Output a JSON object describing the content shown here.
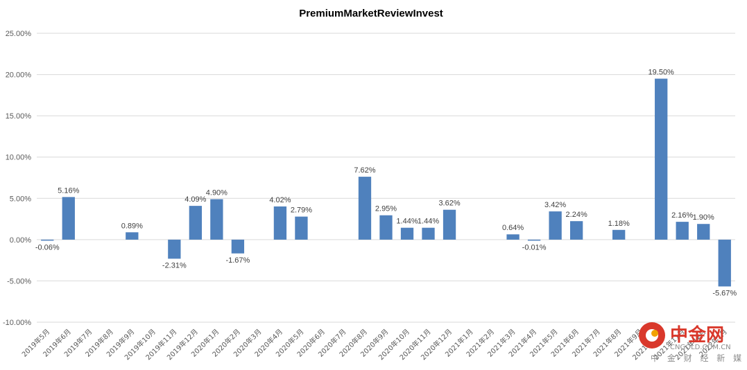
{
  "chart_data": {
    "type": "bar",
    "title": "PremiumMarketReviewInvest",
    "xlabel": "",
    "ylabel": "",
    "ylim": [
      -10,
      25
    ],
    "y_ticks": [
      "25.00%",
      "20.00%",
      "15.00%",
      "10.00%",
      "5.00%",
      "0.00%",
      "-5.00%",
      "-10.00%"
    ],
    "y_tick_values": [
      25,
      20,
      15,
      10,
      5,
      0,
      -5,
      -10
    ],
    "grid": true,
    "legend": "none",
    "bar_color": "#4f81bd",
    "categories": [
      "2019年5月",
      "2019年6月",
      "2019年7月",
      "2019年8月",
      "2019年9月",
      "2019年10月",
      "2019年11月",
      "2019年12月",
      "2020年1月",
      "2020年2月",
      "2020年3月",
      "2020年4月",
      "2020年5月",
      "2020年6月",
      "2020年7月",
      "2020年8月",
      "2020年9月",
      "2020年10月",
      "2020年11月",
      "2020年12月",
      "2021年1月",
      "2021年2月",
      "2021年3月",
      "2021年4月",
      "2021年5月",
      "2021年6月",
      "2021年7月",
      "2021年8月",
      "2021年9月",
      "2021年10月",
      "2021年11月",
      "2021年12月",
      "2022年1月"
    ],
    "values": [
      -0.06,
      5.16,
      null,
      null,
      0.89,
      null,
      -2.31,
      4.09,
      4.9,
      -1.67,
      null,
      4.02,
      2.79,
      null,
      null,
      7.62,
      2.95,
      1.44,
      1.44,
      3.62,
      null,
      null,
      0.64,
      -0.01,
      3.42,
      2.24,
      null,
      1.18,
      null,
      19.5,
      2.16,
      1.9,
      -5.67
    ],
    "data_labels": [
      "-0.06%",
      "5.16%",
      null,
      null,
      "0.89%",
      null,
      "-2.31%",
      "4.09%",
      "4.90%",
      "-1.67%",
      null,
      "4.02%",
      "2.79%",
      null,
      null,
      "7.62%",
      "2.95%",
      "1.44%",
      "1.44%",
      "3.62%",
      null,
      null,
      "0.64%",
      "-0.01%",
      "3.42%",
      "2.24%",
      null,
      "1.18%",
      null,
      "19.50%",
      "2.16%",
      "1.90%",
      "-5.67%"
    ]
  },
  "watermark": {
    "brand": "中金网",
    "site": "CNGOLD.COM.CN",
    "tagline": "中 金 财 经 新 媒 体"
  }
}
